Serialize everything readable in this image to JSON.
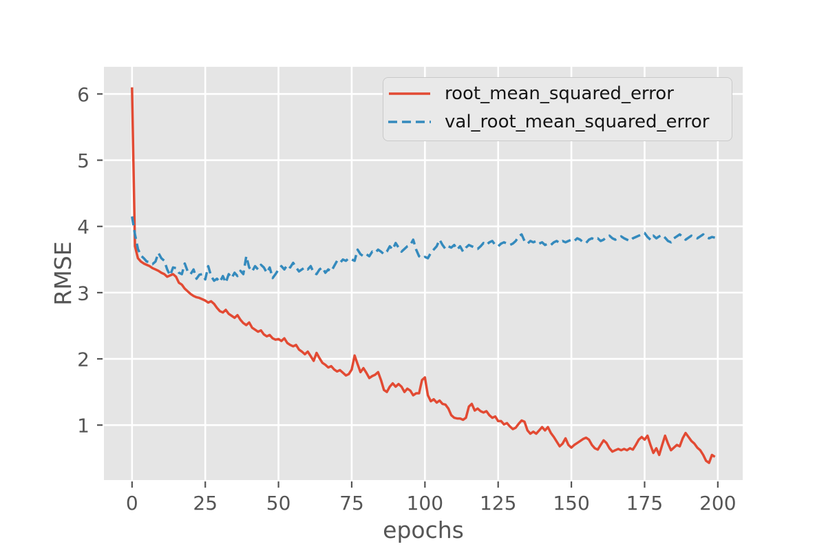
{
  "figure": {
    "background": "#ffffff",
    "axes_background": "#e5e5e5",
    "grid_color": "#ffffff",
    "tick_color": "#555555",
    "label_color": "#555555",
    "legend": {
      "background": "#e9e9e9",
      "border_color": "#c9c9c9",
      "text_color": "#151515"
    }
  },
  "chart_data": {
    "type": "line",
    "title": "",
    "xlabel": "epochs",
    "ylabel": "RMSE",
    "xlim": [
      -9.6,
      208.5
    ],
    "ylim": [
      0.17,
      6.41
    ],
    "xticks": [
      0,
      25,
      50,
      75,
      100,
      125,
      150,
      175,
      200
    ],
    "yticks": [
      1,
      2,
      3,
      4,
      5,
      6
    ],
    "grid": true,
    "legend_position": "upper right",
    "x": [
      0,
      1,
      2,
      3,
      4,
      5,
      6,
      7,
      8,
      9,
      10,
      11,
      12,
      13,
      14,
      15,
      16,
      17,
      18,
      19,
      20,
      21,
      22,
      23,
      24,
      25,
      26,
      27,
      28,
      29,
      30,
      31,
      32,
      33,
      34,
      35,
      36,
      37,
      38,
      39,
      40,
      41,
      42,
      43,
      44,
      45,
      46,
      47,
      48,
      49,
      50,
      51,
      52,
      53,
      54,
      55,
      56,
      57,
      58,
      59,
      60,
      61,
      62,
      63,
      64,
      65,
      66,
      67,
      68,
      69,
      70,
      71,
      72,
      73,
      74,
      75,
      76,
      77,
      78,
      79,
      80,
      81,
      82,
      83,
      84,
      85,
      86,
      87,
      88,
      89,
      90,
      91,
      92,
      93,
      94,
      95,
      96,
      97,
      98,
      99,
      100,
      101,
      102,
      103,
      104,
      105,
      106,
      107,
      108,
      109,
      110,
      111,
      112,
      113,
      114,
      115,
      116,
      117,
      118,
      119,
      120,
      121,
      122,
      123,
      124,
      125,
      126,
      127,
      128,
      129,
      130,
      131,
      132,
      133,
      134,
      135,
      136,
      137,
      138,
      139,
      140,
      141,
      142,
      143,
      144,
      145,
      146,
      147,
      148,
      149,
      150,
      151,
      152,
      153,
      154,
      155,
      156,
      157,
      158,
      159,
      160,
      161,
      162,
      163,
      164,
      165,
      166,
      167,
      168,
      169,
      170,
      171,
      172,
      173,
      174,
      175,
      176,
      177,
      178,
      179,
      180,
      181,
      182,
      183,
      184,
      185,
      186,
      187,
      188,
      189,
      190,
      191,
      192,
      193,
      194,
      195,
      196,
      197,
      198,
      199
    ],
    "series": [
      {
        "name": "root_mean_squared_error",
        "color": "#E24A33",
        "style": "solid",
        "values": [
          6.1,
          3.7,
          3.52,
          3.47,
          3.44,
          3.42,
          3.4,
          3.37,
          3.35,
          3.33,
          3.3,
          3.28,
          3.24,
          3.26,
          3.28,
          3.24,
          3.15,
          3.12,
          3.06,
          3.02,
          2.98,
          2.95,
          2.93,
          2.92,
          2.9,
          2.88,
          2.85,
          2.87,
          2.83,
          2.77,
          2.72,
          2.7,
          2.74,
          2.68,
          2.65,
          2.62,
          2.66,
          2.59,
          2.54,
          2.51,
          2.55,
          2.47,
          2.44,
          2.41,
          2.43,
          2.37,
          2.34,
          2.36,
          2.31,
          2.29,
          2.3,
          2.27,
          2.31,
          2.24,
          2.21,
          2.19,
          2.21,
          2.14,
          2.11,
          2.07,
          2.11,
          2.04,
          1.97,
          2.09,
          2.01,
          1.94,
          1.91,
          1.87,
          1.89,
          1.84,
          1.81,
          1.83,
          1.79,
          1.75,
          1.77,
          1.84,
          2.05,
          1.92,
          1.8,
          1.86,
          1.79,
          1.71,
          1.74,
          1.76,
          1.8,
          1.68,
          1.53,
          1.5,
          1.58,
          1.63,
          1.58,
          1.62,
          1.58,
          1.5,
          1.55,
          1.52,
          1.45,
          1.48,
          1.48,
          1.68,
          1.72,
          1.45,
          1.36,
          1.39,
          1.34,
          1.37,
          1.32,
          1.31,
          1.25,
          1.15,
          1.11,
          1.1,
          1.1,
          1.08,
          1.11,
          1.28,
          1.32,
          1.22,
          1.25,
          1.21,
          1.19,
          1.21,
          1.15,
          1.11,
          1.13,
          1.06,
          1.06,
          1.01,
          1.03,
          0.98,
          0.94,
          0.96,
          1.02,
          1.07,
          1.05,
          0.92,
          0.87,
          0.9,
          0.87,
          0.92,
          0.97,
          0.92,
          0.97,
          0.88,
          0.82,
          0.75,
          0.68,
          0.72,
          0.8,
          0.7,
          0.66,
          0.7,
          0.73,
          0.76,
          0.79,
          0.81,
          0.78,
          0.7,
          0.65,
          0.63,
          0.7,
          0.77,
          0.73,
          0.65,
          0.6,
          0.62,
          0.64,
          0.62,
          0.64,
          0.62,
          0.65,
          0.63,
          0.7,
          0.78,
          0.82,
          0.78,
          0.84,
          0.7,
          0.58,
          0.65,
          0.55,
          0.7,
          0.84,
          0.72,
          0.62,
          0.66,
          0.7,
          0.68,
          0.8,
          0.88,
          0.82,
          0.76,
          0.72,
          0.66,
          0.62,
          0.55,
          0.46,
          0.43,
          0.55,
          0.52
        ]
      },
      {
        "name": "val_root_mean_squared_error",
        "color": "#348ABD",
        "style": "dashed",
        "values": [
          4.15,
          3.88,
          3.66,
          3.56,
          3.52,
          3.47,
          3.46,
          3.43,
          3.47,
          3.6,
          3.52,
          3.48,
          3.35,
          3.26,
          3.38,
          3.37,
          3.3,
          3.28,
          3.44,
          3.32,
          3.28,
          3.35,
          3.21,
          3.27,
          3.28,
          3.2,
          3.4,
          3.25,
          3.18,
          3.21,
          3.16,
          3.25,
          3.15,
          3.28,
          3.22,
          3.3,
          3.25,
          3.33,
          3.28,
          3.55,
          3.38,
          3.32,
          3.4,
          3.35,
          3.42,
          3.38,
          3.3,
          3.38,
          3.22,
          3.28,
          3.35,
          3.4,
          3.35,
          3.42,
          3.38,
          3.45,
          3.38,
          3.32,
          3.35,
          3.38,
          3.35,
          3.4,
          3.3,
          3.28,
          3.35,
          3.38,
          3.3,
          3.35,
          3.32,
          3.4,
          3.48,
          3.45,
          3.5,
          3.48,
          3.52,
          3.5,
          3.48,
          3.65,
          3.58,
          3.55,
          3.58,
          3.55,
          3.62,
          3.6,
          3.65,
          3.62,
          3.58,
          3.62,
          3.7,
          3.65,
          3.75,
          3.68,
          3.62,
          3.66,
          3.7,
          3.72,
          3.8,
          3.65,
          3.55,
          3.52,
          3.54,
          3.52,
          3.6,
          3.65,
          3.7,
          3.8,
          3.72,
          3.66,
          3.7,
          3.68,
          3.72,
          3.65,
          3.7,
          3.62,
          3.68,
          3.72,
          3.7,
          3.68,
          3.66,
          3.7,
          3.75,
          3.72,
          3.76,
          3.78,
          3.72,
          3.7,
          3.74,
          3.76,
          3.74,
          3.72,
          3.74,
          3.78,
          3.85,
          3.88,
          3.78,
          3.74,
          3.78,
          3.76,
          3.78,
          3.74,
          3.76,
          3.72,
          3.74,
          3.72,
          3.76,
          3.78,
          3.75,
          3.78,
          3.76,
          3.78,
          3.8,
          3.78,
          3.82,
          3.8,
          3.76,
          3.75,
          3.8,
          3.82,
          3.8,
          3.82,
          3.78,
          3.8,
          3.84,
          3.86,
          3.82,
          3.8,
          3.83,
          3.85,
          3.82,
          3.8,
          3.78,
          3.82,
          3.84,
          3.86,
          3.88,
          3.9,
          3.84,
          3.8,
          3.86,
          3.82,
          3.85,
          3.87,
          3.83,
          3.78,
          3.76,
          3.82,
          3.85,
          3.88,
          3.84,
          3.8,
          3.83,
          3.86,
          3.84,
          3.82,
          3.85,
          3.88,
          3.84,
          3.82,
          3.84,
          3.83
        ]
      }
    ]
  }
}
